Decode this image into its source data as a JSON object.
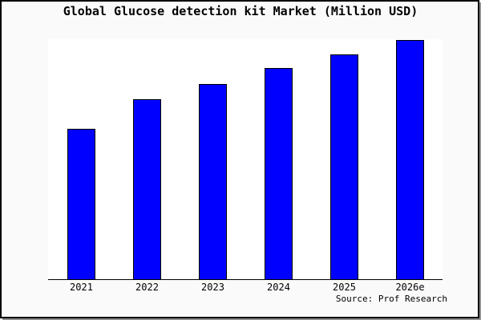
{
  "chart_data": {
    "type": "bar",
    "title": "Global Glucose detection kit Market (Million USD)",
    "unit": "Million USD",
    "categories": [
      "2021",
      "2022",
      "2023",
      "2024",
      "2025",
      "2026e"
    ],
    "values": [
      188,
      225,
      244,
      264,
      281,
      299
    ],
    "values_note": "y-axis shows no tick labels or gridlines; values are relative bar heights measured in pixels from the baseline",
    "xlabel": "",
    "ylabel": "",
    "legend": "none",
    "grid": false,
    "source_label": "Source: Prof Research",
    "colors": {
      "bar_fill": "#0000ff",
      "bar_border": "#000000",
      "plot_background": "#ffffff",
      "figure_background": "#fafafa",
      "frame_border": "#000000",
      "text": "#000000"
    }
  }
}
